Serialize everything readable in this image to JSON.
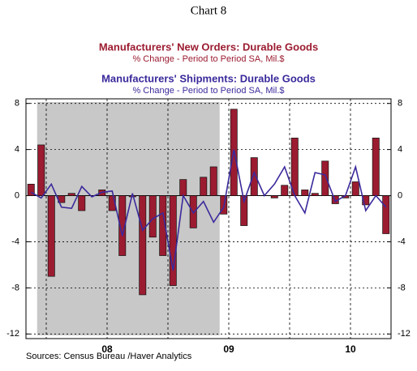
{
  "chart_data": {
    "type": "bar_line",
    "title": "Chart 8",
    "subtitles": [
      {
        "title": "Manufacturers' New Orders: Durable Goods",
        "note": "% Change - Period to Period    SA, Mil.$"
      },
      {
        "title": "Manufacturers' Shipments: Durable Goods",
        "note": "% Change - Period to Period    SA, Mil.$"
      }
    ],
    "source": "Sources:  Census Bureau /Haver Analytics",
    "categories": [
      null,
      null,
      null,
      null,
      null,
      null,
      null,
      null,
      "08",
      null,
      null,
      null,
      null,
      null,
      null,
      null,
      null,
      null,
      null,
      null,
      "09",
      null,
      null,
      null,
      null,
      null,
      null,
      null,
      null,
      null,
      null,
      null,
      "10",
      null,
      null,
      null
    ],
    "series": [
      {
        "name": "Manufacturers' New Orders: Durable Goods",
        "kind": "bar",
        "color": "#9b1b30",
        "values": [
          1.0,
          4.4,
          -7.0,
          -0.6,
          0.2,
          -1.3,
          0.0,
          0.5,
          -1.3,
          -5.2,
          -0.1,
          -8.6,
          -3.6,
          -5.2,
          -7.8,
          1.4,
          -2.8,
          1.6,
          2.5,
          -1.6,
          7.5,
          -2.6,
          3.3,
          0.0,
          -0.2,
          0.9,
          5.0,
          0.5,
          0.2,
          3.0,
          -0.7,
          -0.2,
          1.2,
          -0.8,
          5.0,
          -3.3
        ]
      },
      {
        "name": "Manufacturers' Shipments: Durable Goods",
        "kind": "line",
        "color": "#3a2a9b",
        "values": [
          0.3,
          -0.2,
          1.0,
          -1.0,
          -1.1,
          0.8,
          -0.1,
          0.3,
          0.4,
          -3.5,
          0.2,
          -3.0,
          -2.0,
          -1.5,
          -6.5,
          0.0,
          -1.5,
          -0.5,
          -2.3,
          -1.0,
          4.0,
          -0.5,
          2.0,
          0.0,
          1.0,
          2.5,
          0.0,
          -1.5,
          2.0,
          1.8,
          -0.5,
          0.0,
          2.5,
          -1.3,
          0.0,
          -1.0
        ]
      }
    ],
    "ylim": [
      -12.4,
      8.4
    ],
    "yticks": [
      -12,
      -8,
      -4,
      0,
      4,
      8
    ],
    "grid": true
  }
}
